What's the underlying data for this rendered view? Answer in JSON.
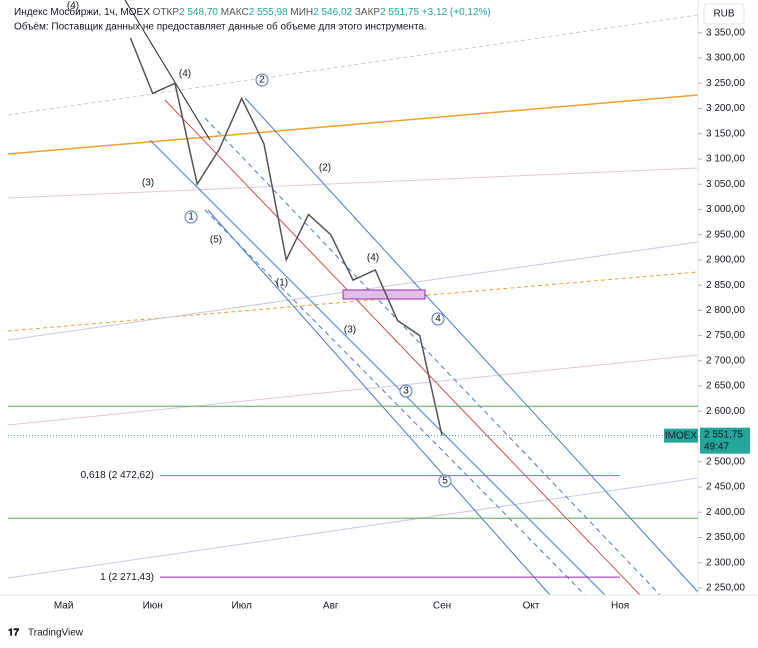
{
  "chart_data": {
    "type": "line",
    "header": {
      "title": "Индекс Мосбиржи, 1ч, MOEX",
      "open_label": "ОТКР",
      "open": "2 548,70",
      "high_label": "МАКС",
      "high": "2 555,98",
      "low_label": "МИН",
      "low": "2 546,02",
      "close_label": "ЗАКР",
      "close": "2 551,75",
      "change": "+3,12 (+0,12%)",
      "volume_note": "Объём: Поставщик данных не предоставляет данные об объеме для этого инструмента."
    },
    "currency": "RUB",
    "categories": [
      null,
      null,
      "Май",
      null,
      null,
      null,
      "Июн",
      null,
      null,
      null,
      "Июл",
      null,
      null,
      null,
      "Авг",
      null,
      null,
      null,
      null,
      "Сен",
      null,
      null,
      null,
      "Окт",
      null,
      null,
      null,
      "Ноя",
      null,
      null,
      null
    ],
    "series": [
      {
        "name": "IMOEX",
        "color": "#555555",
        "values": [
          null,
          null,
          null,
          null,
          null,
          3340,
          3230,
          3250,
          3050,
          3120,
          3220,
          3130,
          2900,
          2990,
          2950,
          2860,
          2880,
          2780,
          2750,
          2552,
          null,
          null,
          null,
          null,
          null,
          null,
          null,
          null,
          null,
          null,
          null
        ]
      }
    ],
    "last_price": {
      "value": 2551.75,
      "label": "2 551,75",
      "ticker": "IMOEX",
      "countdown": "49:47",
      "color": "#26a69a"
    },
    "levels": [
      {
        "value": 2472.62,
        "label": "0,618 (2 472,62)",
        "color": "#26a69a"
      },
      {
        "value": 2271.43,
        "label": "1 (2 271,43)",
        "color": "#9c27b0"
      },
      {
        "value": 2610,
        "color": "#4caf50"
      },
      {
        "value": 2388,
        "color": "#4caf50"
      }
    ],
    "annotations": [
      "(4)",
      "(4)",
      "(3)",
      "1",
      "(5)",
      "2",
      "(2)",
      "(1)",
      "(4)",
      "(3)",
      "4",
      "3",
      "5"
    ],
    "ylim": [
      2236,
      3415
    ],
    "yticks": [
      {
        "value": 2250,
        "label": "2 250,00"
      },
      {
        "value": 2300,
        "label": "2 300,00"
      },
      {
        "value": 2350,
        "label": "2 350,00"
      },
      {
        "value": 2400,
        "label": "2 400,00"
      },
      {
        "value": 2450,
        "label": "2 450,00"
      },
      {
        "value": 2500,
        "label": "2 500,00"
      },
      {
        "value": 2550,
        "label": "2 550,00"
      },
      {
        "value": 2600,
        "label": "2 600,00"
      },
      {
        "value": 2650,
        "label": "2 650,00"
      },
      {
        "value": 2700,
        "label": "2 700,00"
      },
      {
        "value": 2750,
        "label": "2 750,00"
      },
      {
        "value": 2800,
        "label": "2 800,00"
      },
      {
        "value": 2850,
        "label": "2 850,00"
      },
      {
        "value": 2900,
        "label": "2 900,00"
      },
      {
        "value": 2950,
        "label": "2 950,00"
      },
      {
        "value": 3000,
        "label": "3 000,00"
      },
      {
        "value": 3050,
        "label": "3 050,00"
      },
      {
        "value": 3100,
        "label": "3 100,00"
      },
      {
        "value": 3150,
        "label": "3 150,00"
      },
      {
        "value": 3200,
        "label": "3 200,00"
      },
      {
        "value": 3250,
        "label": "3 250,00"
      },
      {
        "value": 3300,
        "label": "3 300,00"
      },
      {
        "value": 3350,
        "label": "3 350,00"
      }
    ],
    "brand": "TradingView"
  }
}
